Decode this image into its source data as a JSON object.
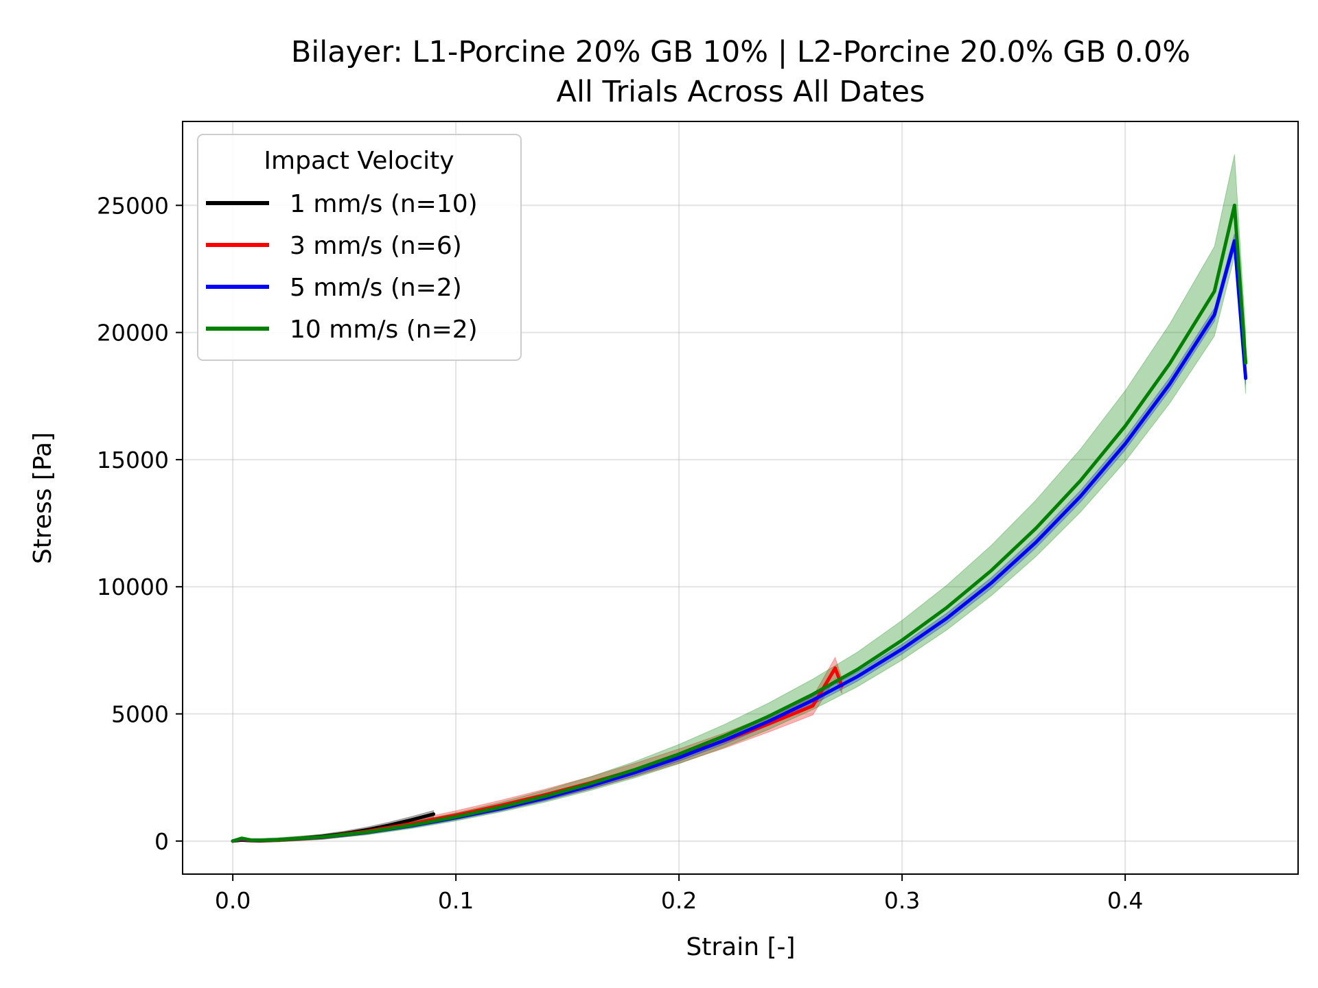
{
  "chart_data": {
    "type": "line",
    "title": "Bilayer: L1-Porcine 20% GB 10% | L2-Porcine 20.0% GB 0.0%",
    "subtitle": "All Trials Across All Dates",
    "xlabel": "Strain [-]",
    "ylabel": "Stress [Pa]",
    "xlim": [
      -0.0225,
      0.4775
    ],
    "ylim": [
      -1300,
      28300
    ],
    "xticks": [
      0.0,
      0.1,
      0.2,
      0.3,
      0.4
    ],
    "xtick_labels": [
      "0.0",
      "0.1",
      "0.2",
      "0.3",
      "0.4"
    ],
    "yticks": [
      0,
      5000,
      10000,
      15000,
      20000,
      25000
    ],
    "ytick_labels": [
      "0",
      "5000",
      "10000",
      "15000",
      "20000",
      "25000"
    ],
    "grid": true,
    "legend": {
      "title": "Impact Velocity",
      "placement": "top-left"
    },
    "series": [
      {
        "name": "1 mm/s (n=10)",
        "color": "#000000",
        "x": [
          0.0,
          0.004,
          0.008,
          0.012,
          0.02,
          0.03,
          0.04,
          0.05,
          0.06,
          0.07,
          0.08,
          0.09
        ],
        "y": [
          0,
          40,
          20,
          10,
          40,
          100,
          180,
          290,
          440,
          620,
          830,
          1060
        ],
        "band": [
          0,
          60,
          60,
          60,
          70,
          80,
          90,
          100,
          110,
          120,
          130,
          140
        ]
      },
      {
        "name": "3 mm/s (n=6)",
        "color": "#ff0000",
        "x": [
          0.0,
          0.004,
          0.008,
          0.012,
          0.02,
          0.04,
          0.06,
          0.08,
          0.1,
          0.12,
          0.14,
          0.16,
          0.18,
          0.2,
          0.22,
          0.24,
          0.26,
          0.27,
          0.273
        ],
        "y": [
          0,
          70,
          30,
          20,
          40,
          150,
          380,
          680,
          1020,
          1400,
          1820,
          2280,
          2790,
          3340,
          3940,
          4600,
          5320,
          6800,
          6100
        ],
        "band": [
          0,
          50,
          60,
          60,
          70,
          90,
          110,
          140,
          170,
          200,
          220,
          240,
          260,
          280,
          300,
          320,
          360,
          420,
          300
        ]
      },
      {
        "name": "5 mm/s (n=2)",
        "color": "#0000ff",
        "x": [
          0.0,
          0.004,
          0.008,
          0.012,
          0.02,
          0.04,
          0.06,
          0.08,
          0.1,
          0.12,
          0.14,
          0.16,
          0.18,
          0.2,
          0.22,
          0.24,
          0.26,
          0.28,
          0.3,
          0.32,
          0.34,
          0.36,
          0.38,
          0.4,
          0.42,
          0.44,
          0.449,
          0.454
        ],
        "y": [
          0,
          90,
          40,
          30,
          50,
          150,
          340,
          600,
          920,
          1280,
          1690,
          2160,
          2690,
          3280,
          3950,
          4700,
          5540,
          6470,
          7550,
          8760,
          10150,
          11750,
          13560,
          15620,
          17980,
          20700,
          23600,
          18200
        ],
        "band": [
          0,
          40,
          40,
          40,
          50,
          60,
          70,
          80,
          90,
          100,
          110,
          120,
          130,
          140,
          150,
          160,
          170,
          180,
          190,
          200,
          210,
          220,
          230,
          240,
          250,
          260,
          280,
          250
        ]
      },
      {
        "name": "10 mm/s (n=2)",
        "color": "#008000",
        "x": [
          0.0,
          0.004,
          0.008,
          0.012,
          0.02,
          0.04,
          0.06,
          0.08,
          0.1,
          0.12,
          0.14,
          0.16,
          0.18,
          0.2,
          0.22,
          0.24,
          0.26,
          0.28,
          0.3,
          0.32,
          0.34,
          0.36,
          0.38,
          0.4,
          0.42,
          0.44,
          0.449,
          0.454
        ],
        "y": [
          0,
          110,
          40,
          30,
          50,
          160,
          350,
          620,
          950,
          1330,
          1760,
          2250,
          2800,
          3420,
          4120,
          4900,
          5770,
          6750,
          7900,
          9180,
          10640,
          12300,
          14180,
          16320,
          18780,
          21620,
          25000,
          18800
        ],
        "band": [
          0,
          50,
          60,
          70,
          80,
          90,
          110,
          130,
          160,
          190,
          230,
          270,
          320,
          380,
          450,
          520,
          600,
          680,
          780,
          880,
          990,
          1110,
          1240,
          1390,
          1560,
          1760,
          2000,
          1200
        ]
      }
    ]
  }
}
